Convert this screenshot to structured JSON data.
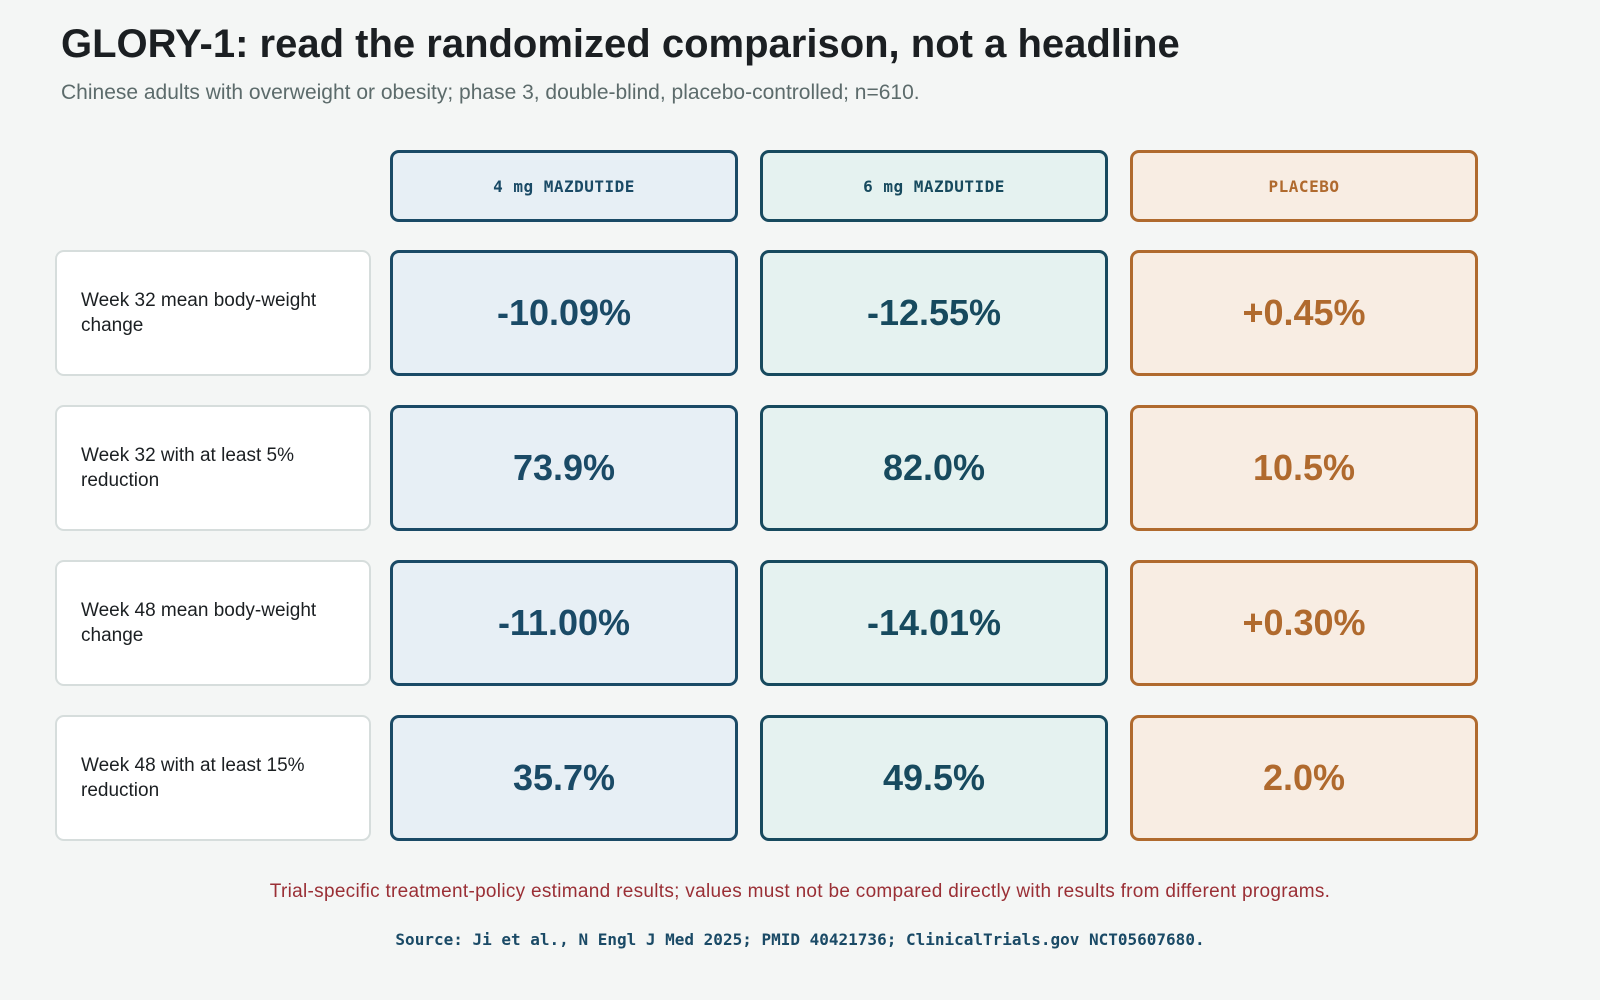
{
  "title": "GLORY-1: read the randomized comparison, not a headline",
  "subtitle": "Chinese adults with overweight or obesity; phase 3, double-blind, placebo-controlled; n=610.",
  "chart_data": {
    "type": "table",
    "columns": [
      {
        "name": "4 mg MAZDUTIDE",
        "border": "#1a4a66",
        "fill": "#e7eff5",
        "text": "#1a4a66",
        "head_text": "#1a4a66"
      },
      {
        "name": "6 mg MAZDUTIDE",
        "border": "#174a5e",
        "fill": "#e5f2f0",
        "text": "#174a5e",
        "head_text": "#174a5e"
      },
      {
        "name": "PLACEBO",
        "border": "#b06a2e",
        "fill": "#f8ede3",
        "text": "#b06a2e",
        "head_text": "#b06a2e"
      }
    ],
    "rows": [
      {
        "label": "Week 32 mean body-weight change",
        "values": [
          "-10.09%",
          "-12.55%",
          "+0.45%"
        ],
        "numeric": [
          -10.09,
          -12.55,
          0.45
        ],
        "unit": "%"
      },
      {
        "label": "Week 32 with at least 5% reduction",
        "values": [
          "73.9%",
          "82.0%",
          "10.5%"
        ],
        "numeric": [
          73.9,
          82.0,
          10.5
        ],
        "unit": "%"
      },
      {
        "label": "Week 48 mean body-weight change",
        "values": [
          "-11.00%",
          "-14.01%",
          "+0.30%"
        ],
        "numeric": [
          -11.0,
          -14.01,
          0.3
        ],
        "unit": "%"
      },
      {
        "label": "Week 48 with at least 15% reduction",
        "values": [
          "35.7%",
          "49.5%",
          "2.0%"
        ],
        "numeric": [
          35.7,
          49.5,
          2.0
        ],
        "unit": "%"
      }
    ]
  },
  "footnote": "Trial-specific treatment-policy estimand results; values must not be compared directly with results from different programs.",
  "source": "Source: Ji et al., N Engl J Med 2025; PMID 40421736; ClinicalTrials.gov NCT05607680."
}
